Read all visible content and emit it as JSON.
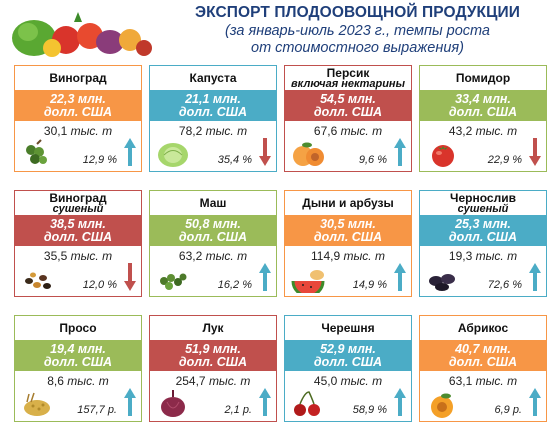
{
  "title": "ЭКСПОРТ ПЛОДООВОЩНОЙ ПРОДУКЦИИ",
  "subtitle_line1": "(за январь-июль 2023 г., темпы роста",
  "subtitle_line2": "от стоимостного выражения)",
  "colors": {
    "orange": "#f79646",
    "blue": "#4bacc6",
    "red": "#c0504d",
    "green": "#9bbb59",
    "arrow_up": "#4bacc6",
    "arrow_down": "#c0504d"
  },
  "cards": [
    {
      "name": "Виноград",
      "sub": "",
      "value": "22,3 млн.",
      "unit": "долл. США",
      "qty": "30,1",
      "qty_unit": "тыс. т",
      "pct": "12,9 %",
      "trend": "up",
      "color": "orange",
      "icon": "grapes-icon"
    },
    {
      "name": "Капуста",
      "sub": "",
      "value": "21,1 млн.",
      "unit": "долл. США",
      "qty": "78,2",
      "qty_unit": "тыс. т",
      "pct": "35,4 %",
      "trend": "down",
      "color": "blue",
      "icon": "cabbage-icon"
    },
    {
      "name": "Персик",
      "sub": "включая нектарины",
      "value": "54,5 млн.",
      "unit": "долл. США",
      "qty": "67,6",
      "qty_unit": "тыс. т",
      "pct": "9,6 %",
      "trend": "up",
      "color": "red",
      "icon": "peach-icon"
    },
    {
      "name": "Помидор",
      "sub": "",
      "value": "33,4 млн.",
      "unit": "долл. США",
      "qty": "43,2",
      "qty_unit": "тыс. т",
      "pct": "22,9 %",
      "trend": "down",
      "color": "green",
      "icon": "tomato-icon"
    },
    {
      "name": "Виноград",
      "sub": "сушеный",
      "value": "38,5 млн.",
      "unit": "долл. США",
      "qty": "35,5",
      "qty_unit": "тыс. т",
      "pct": "12,0 %",
      "trend": "down",
      "color": "red",
      "icon": "raisins-icon"
    },
    {
      "name": "Маш",
      "sub": "",
      "value": "50,8 млн.",
      "unit": "долл. США",
      "qty": "63,2",
      "qty_unit": "тыс. т",
      "pct": "16,2 %",
      "trend": "up",
      "color": "green",
      "icon": "mung-bean-icon"
    },
    {
      "name": "Дыни и арбузы",
      "sub": "",
      "value": "30,5 млн.",
      "unit": "долл. США",
      "qty": "114,9",
      "qty_unit": "тыс. т",
      "pct": "14,9 %",
      "trend": "up",
      "color": "orange",
      "icon": "melon-icon"
    },
    {
      "name": "Чернослив",
      "sub": "сушеный",
      "value": "25,3 млн.",
      "unit": "долл. США",
      "qty": "19,3",
      "qty_unit": "тыс. т",
      "pct": "72,6 %",
      "trend": "up",
      "color": "blue",
      "icon": "prunes-icon"
    },
    {
      "name": "Просо",
      "sub": "",
      "value": "19,4 млн.",
      "unit": "долл. США",
      "qty": "8,6",
      "qty_unit": "тыс. т",
      "pct": "157,7 р.",
      "trend": "up",
      "color": "green",
      "icon": "millet-icon"
    },
    {
      "name": "Лук",
      "sub": "",
      "value": "51,9 млн.",
      "unit": "долл. США",
      "qty": "254,7",
      "qty_unit": "тыс. т",
      "pct": "2,1 р.",
      "trend": "up",
      "color": "red",
      "icon": "onion-icon"
    },
    {
      "name": "Черешня",
      "sub": "",
      "value": "52,9 млн.",
      "unit": "долл. США",
      "qty": "45,0",
      "qty_unit": "тыс. т",
      "pct": "58,9 %",
      "trend": "up",
      "color": "blue",
      "icon": "cherry-icon"
    },
    {
      "name": "Абрикос",
      "sub": "",
      "value": "40,7 млн.",
      "unit": "долл. США",
      "qty": "63,1",
      "qty_unit": "тыс. т",
      "pct": "6,9 р.",
      "trend": "up",
      "color": "orange",
      "icon": "apricot-icon"
    }
  ]
}
